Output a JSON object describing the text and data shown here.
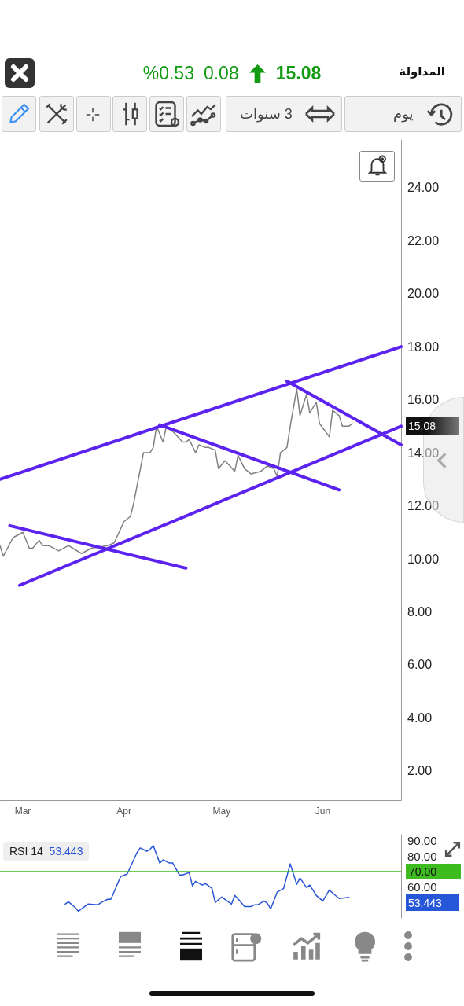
{
  "chart_data": [
    {
      "type": "line",
      "title": "المداولة",
      "marker": "none",
      "grid": false,
      "annotations": [
        "15.08",
        "0.08",
        "%0.53",
        "3 سنوات",
        "يوم",
        "15.08"
      ],
      "xlim": [
        "--02-22",
        "--06-25"
      ],
      "xticks": [
        {
          "value": "--03-01",
          "label": "Mar"
        },
        {
          "value": "--04-01",
          "label": "Apr"
        },
        {
          "value": "--05-01",
          "label": "May"
        },
        {
          "value": "--06-01",
          "label": "Jun"
        }
      ],
      "ylim": [
        0.9,
        25.8
      ],
      "yticks": [
        {
          "value": 2,
          "label": "2.00"
        },
        {
          "value": 4,
          "label": "4.00"
        },
        {
          "value": 6,
          "label": "6.00"
        },
        {
          "value": 8,
          "label": "8.00"
        },
        {
          "value": 10,
          "label": "10.00"
        },
        {
          "value": 12,
          "label": "12.00"
        },
        {
          "value": 14,
          "label": "14.00"
        },
        {
          "value": 16,
          "label": "16.00"
        },
        {
          "value": 18,
          "label": "18.00"
        },
        {
          "value": 20,
          "label": "20.00"
        },
        {
          "value": 22,
          "label": "22.00"
        },
        {
          "value": 24,
          "label": "24.00"
        }
      ],
      "series": [
        {
          "color": "#808080",
          "x": [
            "--02-22",
            "--02-23",
            "--02-26",
            "--03-01",
            "--03-03",
            "--03-04",
            "--03-06",
            "--03-07",
            "--03-09",
            "--03-12",
            "--03-15",
            "--03-19",
            "--03-22",
            "--03-27",
            "--03-29",
            "--04-01",
            "--04-03",
            "--04-04",
            "--04-07",
            "--04-09",
            "--04-10",
            "--04-11",
            "--04-13",
            "--04-14",
            "--04-16",
            "--04-19",
            "--04-20",
            "--04-21",
            "--04-23",
            "--04-24",
            "--04-26",
            "--04-27",
            "--04-29",
            "--04-30",
            "--05-02",
            "--05-05",
            "--05-06",
            "--05-08",
            "--05-10",
            "--05-13",
            "--05-15",
            "--05-17",
            "--05-18",
            "--05-19",
            "--05-21",
            "--05-22",
            "--05-24",
            "--05-25",
            "--05-27",
            "--05-28",
            "--05-30",
            "--05-31",
            "--06-03",
            "--06-04",
            "--06-06",
            "--06-07",
            "--06-09",
            "--06-10"
          ],
          "values": [
            10.5,
            10.1,
            10.8,
            11.0,
            10.4,
            10.4,
            10.7,
            10.5,
            10.5,
            10.3,
            10.5,
            10.2,
            10.4,
            10.5,
            10.6,
            11.4,
            11.6,
            12.1,
            14.0,
            14.0,
            14.2,
            15.0,
            14.4,
            15.0,
            14.8,
            14.4,
            14.4,
            14.5,
            14.0,
            14.3,
            14.2,
            14.2,
            14.1,
            13.4,
            13.7,
            13.3,
            13.9,
            13.4,
            13.2,
            13.3,
            13.5,
            13.4,
            13.1,
            14.0,
            14.2,
            15.0,
            16.4,
            15.4,
            16.2,
            15.5,
            15.9,
            15.1,
            14.6,
            15.6,
            15.4,
            15.0,
            15.0,
            15.1
          ]
        },
        {
          "type": "line",
          "color": "#5b22f0",
          "x": [
            "--02-22",
            "--06-25"
          ],
          "values": [
            13.0,
            18.0
          ]
        },
        {
          "type": "line",
          "color": "#5b22f0",
          "x": [
            "--02-28",
            "--06-25"
          ],
          "values": [
            9.0,
            15.0
          ]
        },
        {
          "type": "line",
          "color": "#5b22f0",
          "x": [
            "--02-25",
            "--04-20"
          ],
          "values": [
            11.25,
            9.65
          ]
        },
        {
          "type": "line",
          "color": "#5b22f0",
          "x": [
            "--04-12",
            "--06-06"
          ],
          "values": [
            15.05,
            12.6
          ]
        },
        {
          "type": "line",
          "color": "#5b22f0",
          "x": [
            "--05-21",
            "--06-25"
          ],
          "values": [
            16.7,
            14.3
          ]
        }
      ]
    },
    {
      "type": "line",
      "title": "RSI 14",
      "marker": "none",
      "grid": false,
      "tick_labels": "y",
      "annotations": [
        "53.443",
        "53.443"
      ],
      "xlim": [
        "--02-22",
        "--06-25"
      ],
      "ylim": [
        40,
        94
      ],
      "yticks": [
        {
          "value": 60,
          "label": "60.00"
        },
        {
          "value": 80,
          "label": "80.00"
        },
        {
          "value": 90,
          "label": "90.00"
        }
      ],
      "ref_lines": [
        {
          "axis": "y",
          "value": 70,
          "label": "70.00",
          "color": "#3dbb1f"
        }
      ],
      "series": [
        {
          "color": "#2a55d6",
          "x": [
            "--03-14",
            "--03-15",
            "--03-17",
            "--03-18",
            "--03-21",
            "--03-24",
            "--03-25",
            "--03-27",
            "--03-28",
            "--03-31",
            "--04-02",
            "--04-03",
            "--04-05",
            "--04-06",
            "--04-08",
            "--04-09",
            "--04-10",
            "--04-12",
            "--04-13",
            "--04-15",
            "--04-16",
            "--04-18",
            "--04-19",
            "--04-21",
            "--04-22",
            "--04-23",
            "--04-25",
            "--04-26",
            "--04-28",
            "--04-29",
            "--05-01",
            "--05-04",
            "--05-05",
            "--05-07",
            "--05-08",
            "--05-10",
            "--05-11",
            "--05-12",
            "--05-14",
            "--05-15",
            "--05-16",
            "--05-18",
            "--05-20",
            "--05-22",
            "--05-24",
            "--05-25",
            "--05-27",
            "--05-28",
            "--05-30",
            "--06-01",
            "--06-03",
            "--06-04",
            "--06-06",
            "--06-09"
          ],
          "values": [
            49.0,
            50.5,
            46.9,
            44.4,
            49.0,
            48.5,
            50.0,
            52.1,
            52.1,
            66.9,
            68.5,
            73.1,
            82.3,
            85.4,
            83.3,
            84.4,
            86.9,
            75.6,
            77.7,
            75.6,
            75.6,
            67.9,
            67.9,
            69.5,
            60.8,
            63.8,
            61.3,
            62.3,
            59.2,
            50.0,
            53.6,
            49.0,
            54.6,
            50.0,
            47.4,
            47.4,
            48.5,
            48.5,
            51.0,
            49.5,
            45.9,
            56.7,
            59.2,
            75.1,
            61.8,
            65.9,
            59.7,
            61.3,
            54.6,
            51.0,
            58.2,
            56.2,
            52.6,
            53.4
          ]
        }
      ]
    }
  ]
}
